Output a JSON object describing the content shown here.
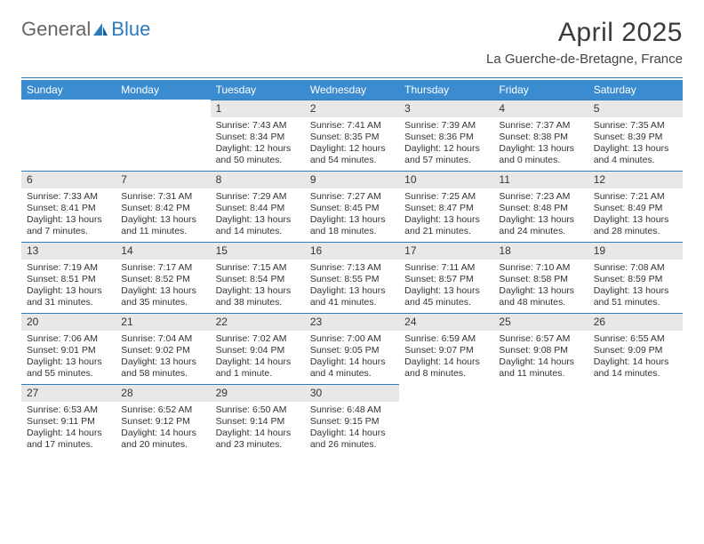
{
  "logo": {
    "part1": "General",
    "part2": "Blue"
  },
  "title": "April 2025",
  "location": "La Guerche-de-Bretagne, France",
  "colors": {
    "header_bar": "#3b8bd0",
    "rule": "#2b7bbf",
    "daynum_bg": "#e8e8e8",
    "text": "#333333",
    "title_text": "#3b3b3b"
  },
  "dow": [
    "Sunday",
    "Monday",
    "Tuesday",
    "Wednesday",
    "Thursday",
    "Friday",
    "Saturday"
  ],
  "leading_blanks": 2,
  "days": [
    {
      "n": 1,
      "sr": "7:43 AM",
      "ss": "8:34 PM",
      "dl": "12 hours and 50 minutes."
    },
    {
      "n": 2,
      "sr": "7:41 AM",
      "ss": "8:35 PM",
      "dl": "12 hours and 54 minutes."
    },
    {
      "n": 3,
      "sr": "7:39 AM",
      "ss": "8:36 PM",
      "dl": "12 hours and 57 minutes."
    },
    {
      "n": 4,
      "sr": "7:37 AM",
      "ss": "8:38 PM",
      "dl": "13 hours and 0 minutes."
    },
    {
      "n": 5,
      "sr": "7:35 AM",
      "ss": "8:39 PM",
      "dl": "13 hours and 4 minutes."
    },
    {
      "n": 6,
      "sr": "7:33 AM",
      "ss": "8:41 PM",
      "dl": "13 hours and 7 minutes."
    },
    {
      "n": 7,
      "sr": "7:31 AM",
      "ss": "8:42 PM",
      "dl": "13 hours and 11 minutes."
    },
    {
      "n": 8,
      "sr": "7:29 AM",
      "ss": "8:44 PM",
      "dl": "13 hours and 14 minutes."
    },
    {
      "n": 9,
      "sr": "7:27 AM",
      "ss": "8:45 PM",
      "dl": "13 hours and 18 minutes."
    },
    {
      "n": 10,
      "sr": "7:25 AM",
      "ss": "8:47 PM",
      "dl": "13 hours and 21 minutes."
    },
    {
      "n": 11,
      "sr": "7:23 AM",
      "ss": "8:48 PM",
      "dl": "13 hours and 24 minutes."
    },
    {
      "n": 12,
      "sr": "7:21 AM",
      "ss": "8:49 PM",
      "dl": "13 hours and 28 minutes."
    },
    {
      "n": 13,
      "sr": "7:19 AM",
      "ss": "8:51 PM",
      "dl": "13 hours and 31 minutes."
    },
    {
      "n": 14,
      "sr": "7:17 AM",
      "ss": "8:52 PM",
      "dl": "13 hours and 35 minutes."
    },
    {
      "n": 15,
      "sr": "7:15 AM",
      "ss": "8:54 PM",
      "dl": "13 hours and 38 minutes."
    },
    {
      "n": 16,
      "sr": "7:13 AM",
      "ss": "8:55 PM",
      "dl": "13 hours and 41 minutes."
    },
    {
      "n": 17,
      "sr": "7:11 AM",
      "ss": "8:57 PM",
      "dl": "13 hours and 45 minutes."
    },
    {
      "n": 18,
      "sr": "7:10 AM",
      "ss": "8:58 PM",
      "dl": "13 hours and 48 minutes."
    },
    {
      "n": 19,
      "sr": "7:08 AM",
      "ss": "8:59 PM",
      "dl": "13 hours and 51 minutes."
    },
    {
      "n": 20,
      "sr": "7:06 AM",
      "ss": "9:01 PM",
      "dl": "13 hours and 55 minutes."
    },
    {
      "n": 21,
      "sr": "7:04 AM",
      "ss": "9:02 PM",
      "dl": "13 hours and 58 minutes."
    },
    {
      "n": 22,
      "sr": "7:02 AM",
      "ss": "9:04 PM",
      "dl": "14 hours and 1 minute."
    },
    {
      "n": 23,
      "sr": "7:00 AM",
      "ss": "9:05 PM",
      "dl": "14 hours and 4 minutes."
    },
    {
      "n": 24,
      "sr": "6:59 AM",
      "ss": "9:07 PM",
      "dl": "14 hours and 8 minutes."
    },
    {
      "n": 25,
      "sr": "6:57 AM",
      "ss": "9:08 PM",
      "dl": "14 hours and 11 minutes."
    },
    {
      "n": 26,
      "sr": "6:55 AM",
      "ss": "9:09 PM",
      "dl": "14 hours and 14 minutes."
    },
    {
      "n": 27,
      "sr": "6:53 AM",
      "ss": "9:11 PM",
      "dl": "14 hours and 17 minutes."
    },
    {
      "n": 28,
      "sr": "6:52 AM",
      "ss": "9:12 PM",
      "dl": "14 hours and 20 minutes."
    },
    {
      "n": 29,
      "sr": "6:50 AM",
      "ss": "9:14 PM",
      "dl": "14 hours and 23 minutes."
    },
    {
      "n": 30,
      "sr": "6:48 AM",
      "ss": "9:15 PM",
      "dl": "14 hours and 26 minutes."
    }
  ],
  "labels": {
    "sunrise": "Sunrise:",
    "sunset": "Sunset:",
    "daylight": "Daylight:"
  }
}
